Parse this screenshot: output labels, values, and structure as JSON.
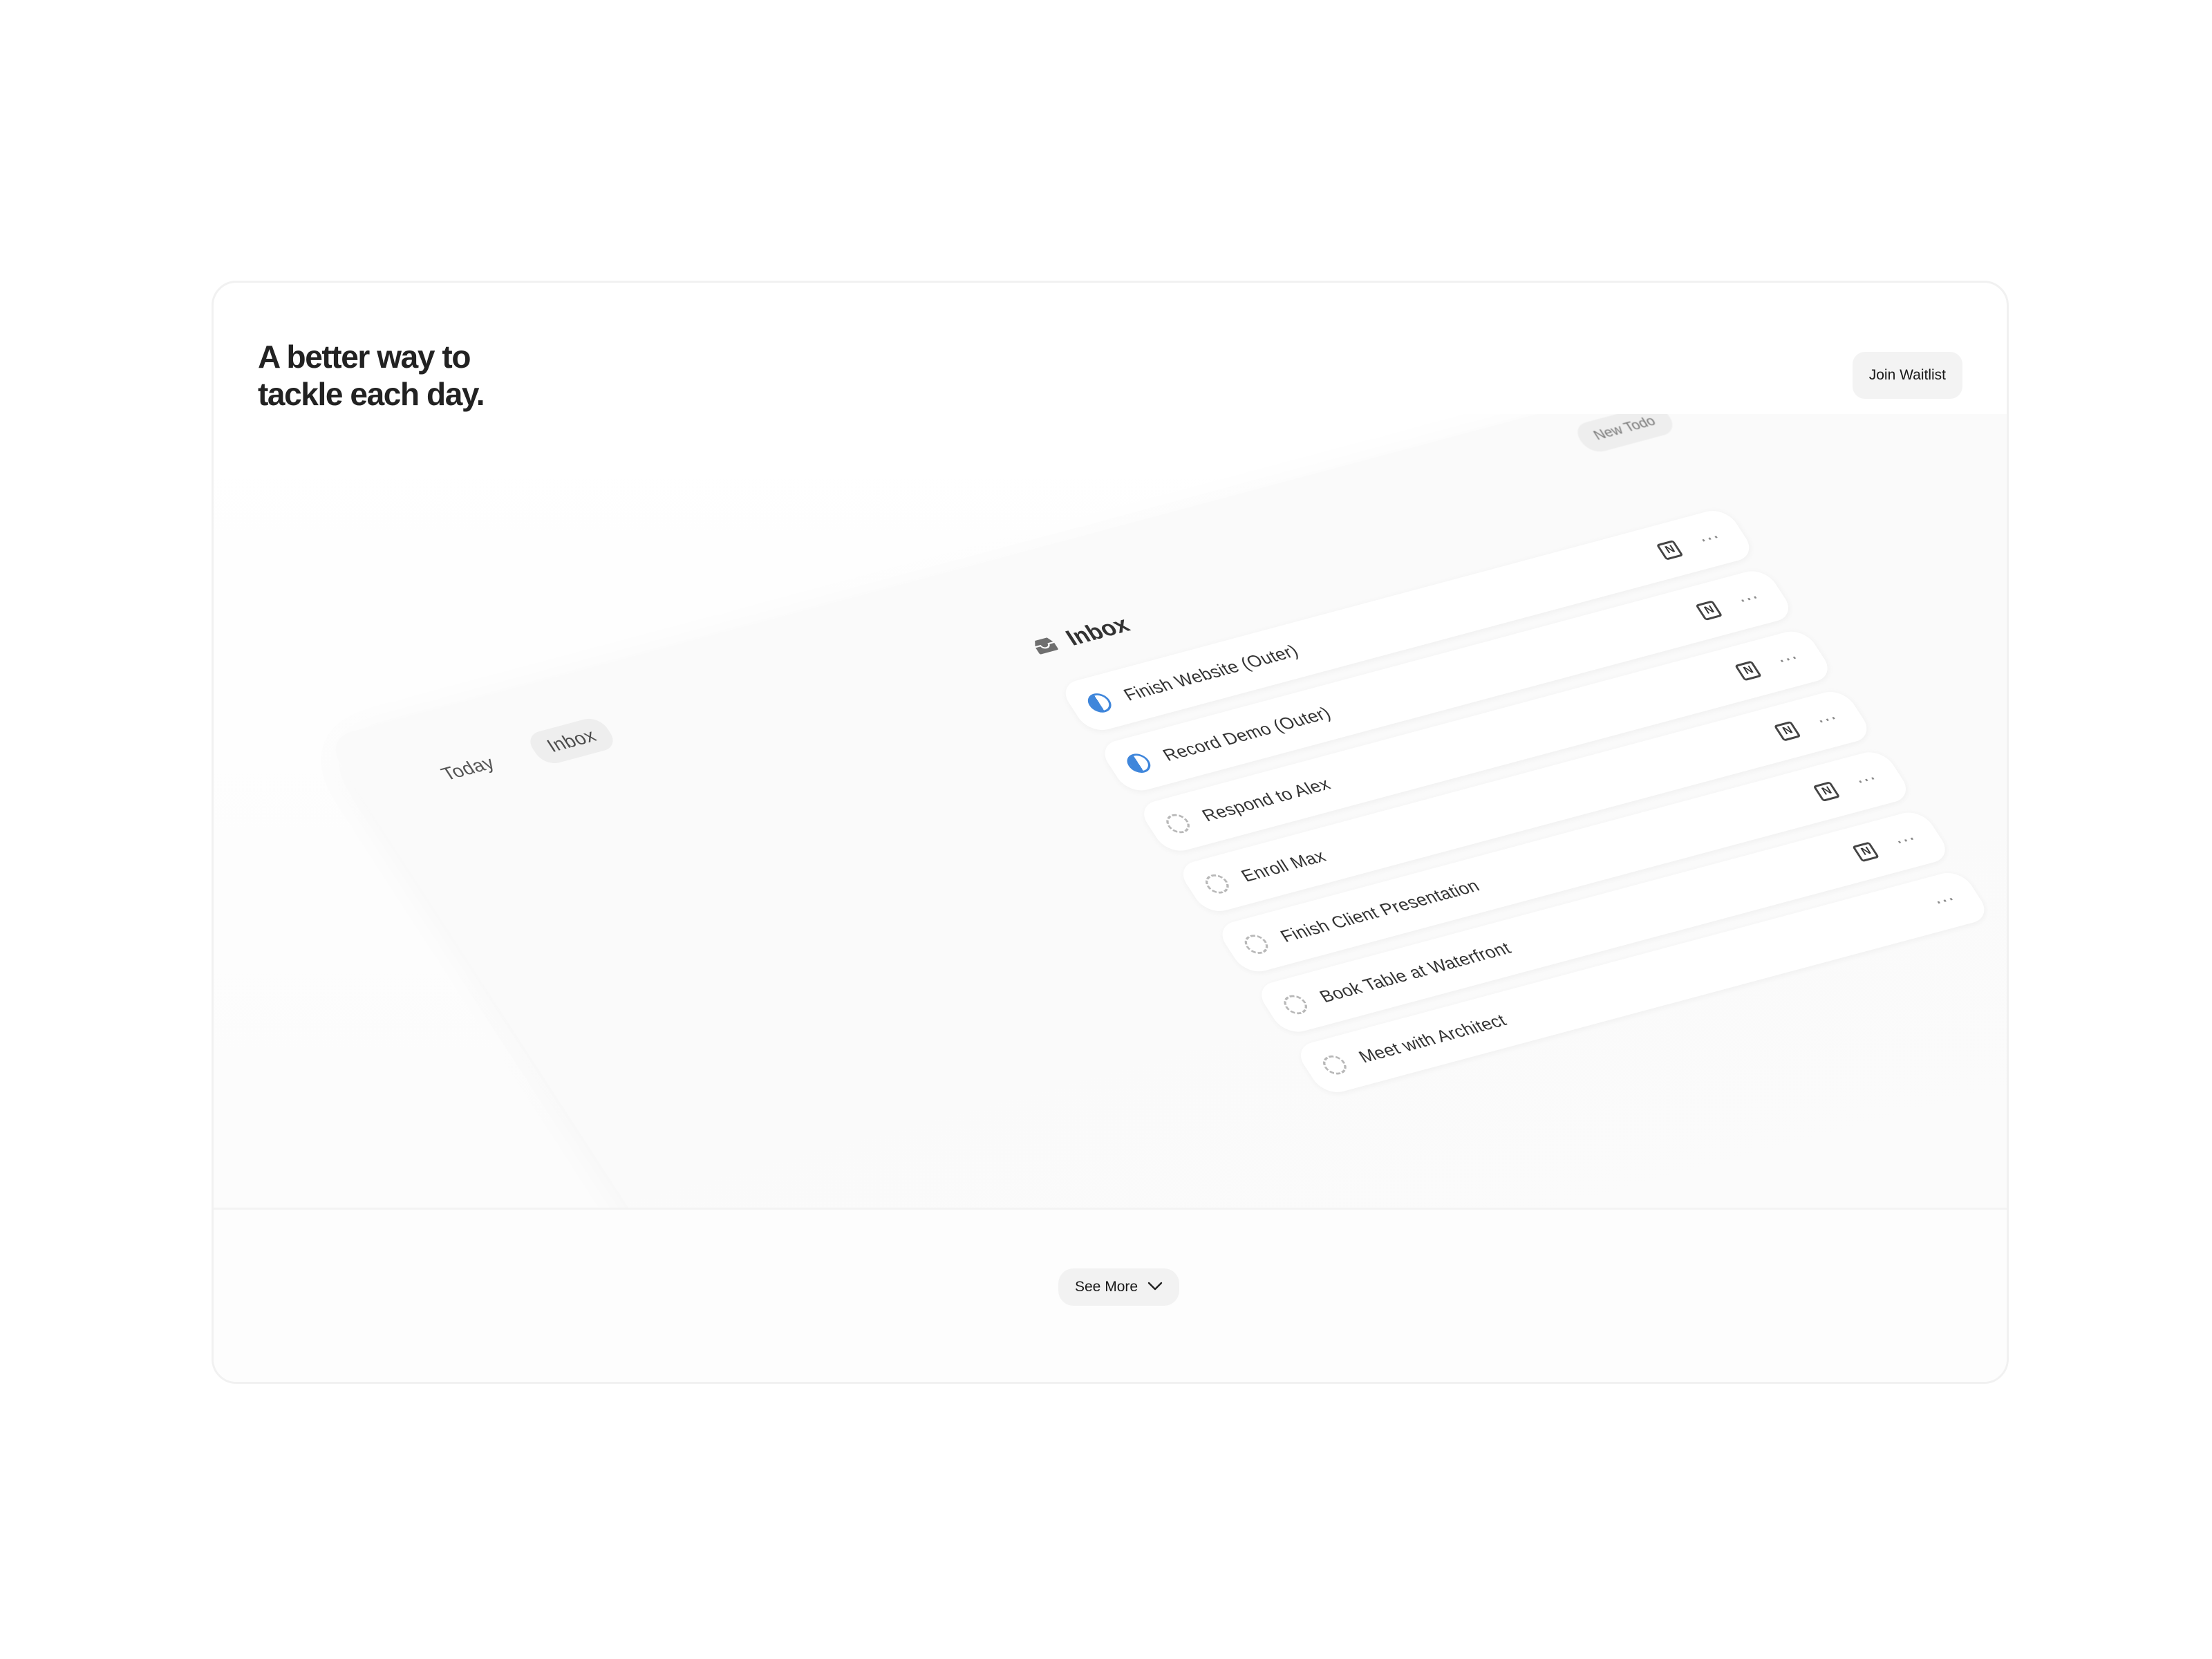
{
  "hero": {
    "headline_line1": "A better way to",
    "headline_line2": "tackle each day.",
    "cta_label": "Join Waitlist"
  },
  "app": {
    "nav": [
      {
        "label": "Today",
        "active": false
      },
      {
        "label": "Inbox",
        "active": true
      }
    ],
    "new_todo_label": "New Todo",
    "inbox_title": "Inbox",
    "todos": [
      {
        "label": "Finish Website (Outer)",
        "status": "in-progress",
        "has_notion": true
      },
      {
        "label": "Record Demo (Outer)",
        "status": "in-progress",
        "has_notion": true
      },
      {
        "label": "Respond to Alex",
        "status": "todo",
        "has_notion": true
      },
      {
        "label": "Enroll Max",
        "status": "todo",
        "has_notion": true
      },
      {
        "label": "Finish Client Presentation",
        "status": "todo",
        "has_notion": true
      },
      {
        "label": "Book Table at Waterfront",
        "status": "todo",
        "has_notion": true
      },
      {
        "label": "Meet with Architect",
        "status": "todo",
        "has_notion": false
      }
    ],
    "icons": {
      "inbox": "inbox-tray-icon",
      "notion": "notion-icon",
      "more": "more-horizontal-icon",
      "status_progress": "half-circle-progress-icon",
      "status_todo": "dashed-circle-icon"
    },
    "colors": {
      "accent": "#3f86db"
    }
  },
  "footer": {
    "see_more_label": "See More",
    "see_more_icon": "chevron-down-icon"
  }
}
